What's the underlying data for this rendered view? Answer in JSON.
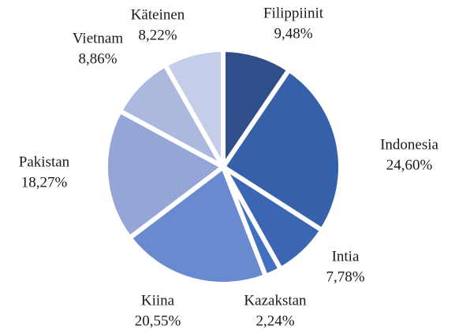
{
  "chart_data": {
    "type": "pie",
    "categories": [
      "Filippiinit",
      "Indonesia",
      "Intia",
      "Kazakstan",
      "Kiina",
      "Pakistan",
      "Vietnam",
      "Käteinen"
    ],
    "values": [
      9.48,
      24.6,
      7.78,
      2.24,
      20.55,
      18.27,
      8.86,
      8.22
    ],
    "value_labels": [
      "9,48%",
      "24,60%",
      "7,78%",
      "2,24%",
      "20,55%",
      "18,27%",
      "8,86%",
      "8,22%"
    ],
    "colors": [
      "#2f4e8a",
      "#3660a8",
      "#3a66b4",
      "#4270c0",
      "#6a8ad0",
      "#93a6d7",
      "#abb9de",
      "#c5cde9"
    ]
  }
}
